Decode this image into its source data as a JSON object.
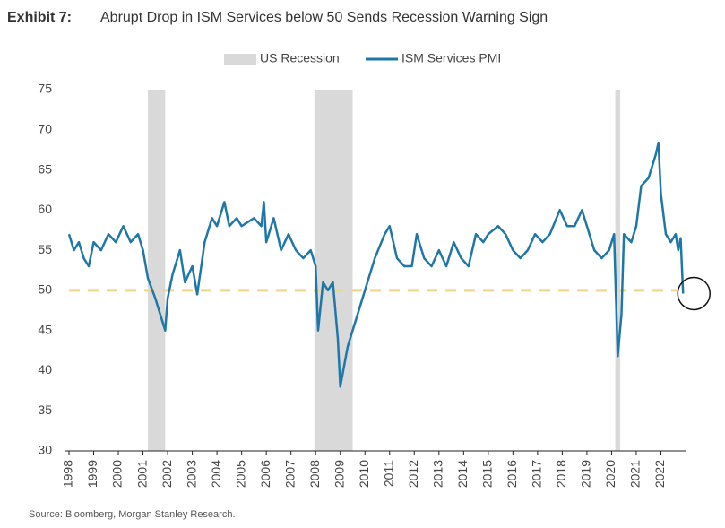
{
  "chart_data": {
    "type": "line",
    "title_label": "Exhibit 7:",
    "title": "Abrupt Drop in ISM Services below 50 Sends Recession Warning Sign",
    "source": "Source: Bloomberg, Morgan Stanley Research.",
    "x": [
      1998.0,
      1998.2,
      1998.4,
      1998.6,
      1998.8,
      1999.0,
      1999.3,
      1999.6,
      1999.9,
      2000.2,
      2000.5,
      2000.8,
      2001.0,
      2001.2,
      2001.5,
      2001.7,
      2001.9,
      2002.0,
      2002.2,
      2002.5,
      2002.7,
      2003.0,
      2003.2,
      2003.5,
      2003.8,
      2004.0,
      2004.3,
      2004.5,
      2004.8,
      2005.0,
      2005.5,
      2005.8,
      2005.9,
      2006.0,
      2006.3,
      2006.6,
      2006.9,
      2007.2,
      2007.5,
      2007.8,
      2008.0,
      2008.1,
      2008.3,
      2008.5,
      2008.7,
      2008.9,
      2009.0,
      2009.3,
      2009.6,
      2009.9,
      2010.1,
      2010.4,
      2010.8,
      2011.0,
      2011.3,
      2011.6,
      2011.9,
      2012.1,
      2012.4,
      2012.7,
      2013.0,
      2013.3,
      2013.6,
      2013.9,
      2014.2,
      2014.5,
      2014.8,
      2015.0,
      2015.4,
      2015.7,
      2016.0,
      2016.3,
      2016.6,
      2016.9,
      2017.2,
      2017.5,
      2017.9,
      2018.2,
      2018.5,
      2018.8,
      2019.0,
      2019.3,
      2019.6,
      2019.9,
      2020.0,
      2020.1,
      2020.25,
      2020.4,
      2020.5,
      2020.8,
      2021.0,
      2021.2,
      2021.5,
      2021.8,
      2021.9,
      2022.0,
      2022.2,
      2022.4,
      2022.6,
      2022.7,
      2022.8,
      2022.9
    ],
    "series": [
      {
        "name": "ISM Services PMI",
        "color": "#1f77a8",
        "values": [
          57,
          55,
          56,
          54,
          53,
          56,
          55,
          57,
          56,
          58,
          56,
          57,
          55,
          51.5,
          49,
          47,
          45,
          49,
          52,
          55,
          51,
          53,
          49.5,
          56,
          59,
          58,
          61,
          58,
          59,
          58,
          59,
          58,
          61,
          56,
          59,
          55,
          57,
          55,
          54,
          55,
          53,
          45,
          51,
          50,
          51,
          44,
          38,
          43,
          46,
          49,
          51,
          54,
          57,
          58,
          54,
          53,
          53,
          57,
          54,
          53,
          55,
          53,
          56,
          54,
          53,
          57,
          56,
          57,
          58,
          57,
          55,
          54,
          55,
          57,
          56,
          57,
          60,
          58,
          58,
          60,
          58,
          55,
          54,
          55,
          56,
          57,
          41.8,
          47,
          57,
          56,
          58,
          63,
          64,
          67,
          68.4,
          62,
          57,
          56,
          57,
          55,
          56.5,
          49.6
        ]
      }
    ],
    "shaded_periods": {
      "name": "US Recession",
      "color": "#d9d9d9",
      "periods": [
        [
          2001.2,
          2001.9
        ],
        [
          2007.95,
          2009.5
        ],
        [
          2020.15,
          2020.35
        ]
      ]
    },
    "reference_line": {
      "value": 50,
      "color": "#f2d38a"
    },
    "xlim": [
      1998,
      2023
    ],
    "xticks": [
      1998,
      1999,
      2000,
      2001,
      2002,
      2003,
      2004,
      2005,
      2006,
      2007,
      2008,
      2009,
      2010,
      2011,
      2012,
      2013,
      2014,
      2015,
      2016,
      2017,
      2018,
      2019,
      2020,
      2021,
      2022
    ],
    "ylim": [
      30,
      75
    ],
    "yticks": [
      30,
      35,
      40,
      45,
      50,
      55,
      60,
      65,
      70,
      75
    ]
  }
}
